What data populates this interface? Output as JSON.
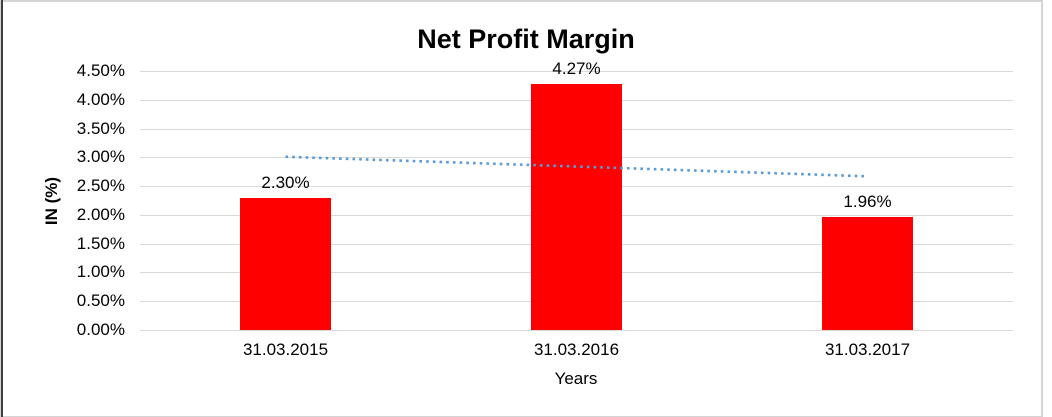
{
  "chart_data": {
    "type": "bar",
    "title": "Net Profit Margin",
    "xlabel": "Years",
    "ylabel": "IN (%)",
    "categories": [
      "31.03.2015",
      "31.03.2016",
      "31.03.2017"
    ],
    "values": [
      2.3,
      4.27,
      1.96
    ],
    "value_labels": [
      "2.30%",
      "4.27%",
      "1.96%"
    ],
    "ylim": [
      0,
      4.5
    ],
    "ytick_step": 0.5,
    "ytick_labels": [
      "0.00%",
      "0.50%",
      "1.00%",
      "1.50%",
      "2.00%",
      "2.50%",
      "3.00%",
      "3.50%",
      "4.00%",
      "4.50%"
    ],
    "grid": true,
    "legend": "none",
    "bar_color": "#ff0000",
    "gridline_color": "#d9d9d9",
    "text_color": "#000000",
    "trendline": {
      "style": "dotted",
      "color": "#5b9bd5",
      "start_value": 3.01,
      "end_value": 2.67
    }
  }
}
